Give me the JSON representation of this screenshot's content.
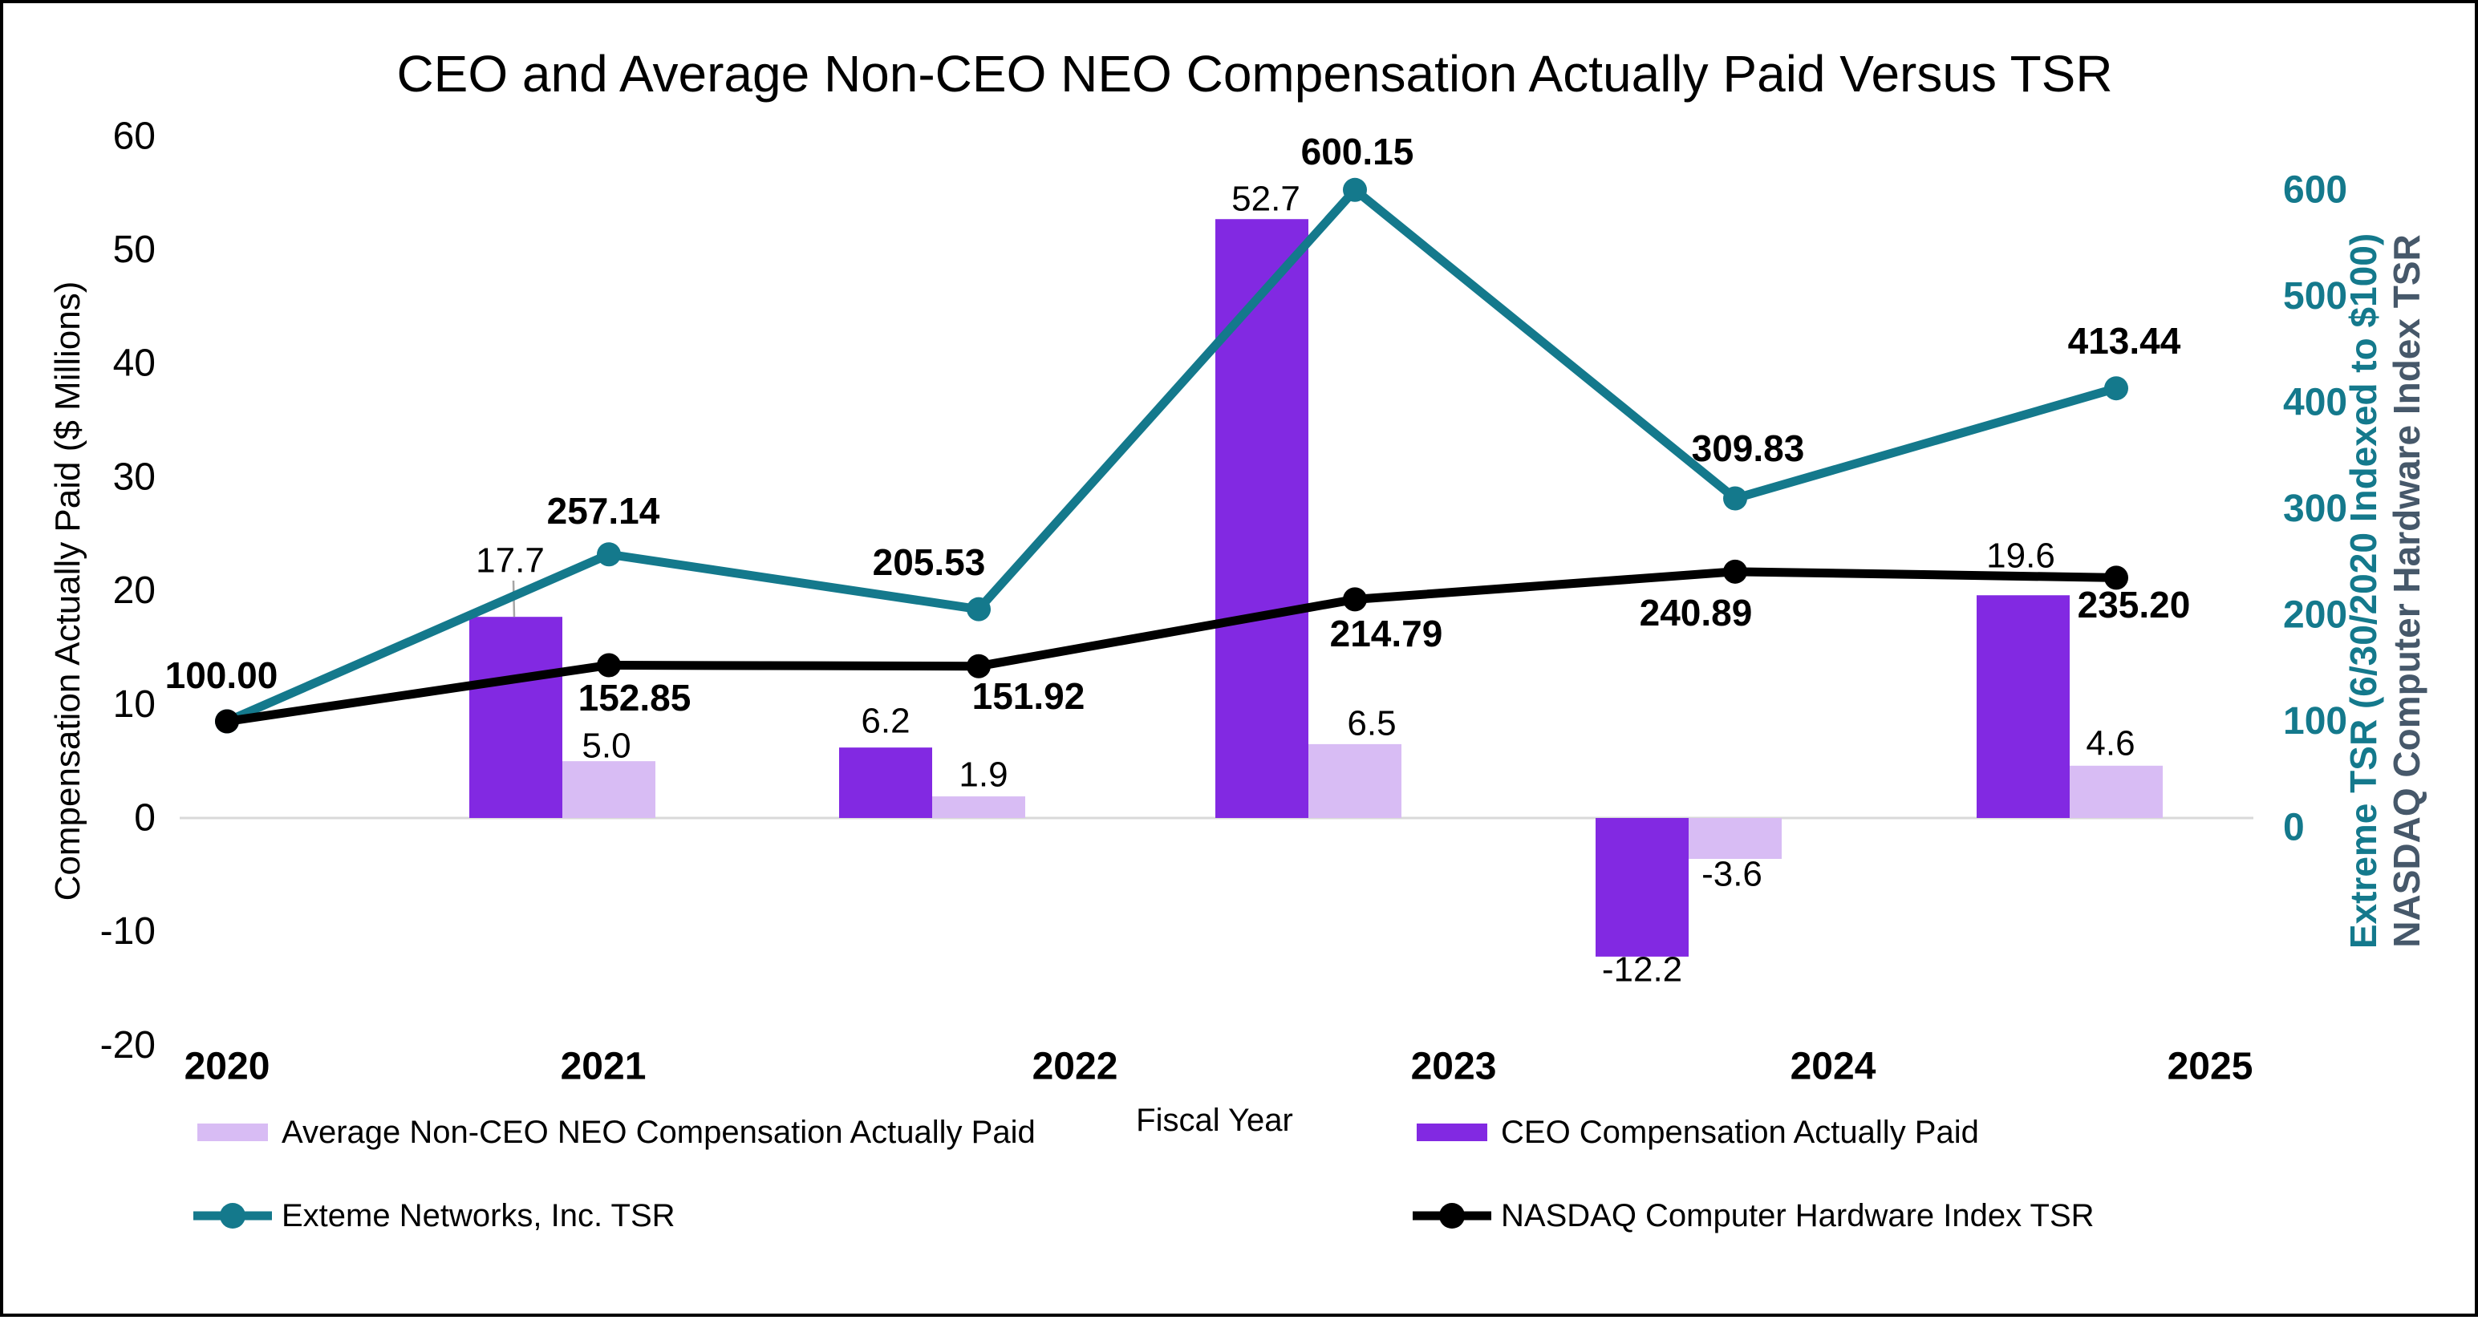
{
  "title": "CEO and Average Non-CEO NEO Compensation Actually Paid Versus TSR",
  "colors": {
    "ceo_bar": "#8229E2",
    "avg_bar": "#D8BCF4",
    "extreme_line": "#14798C",
    "nasdaq_line": "#000000",
    "right_axis_ticks": "#14798C",
    "right_axis_title1": "#14798C",
    "right_axis_title2": "#46586A",
    "zero_line": "#D9D9D9",
    "label_leader": "#A6A6A6"
  },
  "axes": {
    "left": {
      "title": "Compensation Actually Paid ($ Millions)",
      "ticks": [
        "60",
        "50",
        "40",
        "30",
        "20",
        "10",
        "0",
        "-10",
        "-20"
      ]
    },
    "right": {
      "title_line1": "Extreme TSR (6/30/2020 Indexed to $100)",
      "title_line2": "NASDAQ Computer Hardware Index TSR",
      "ticks": [
        "600",
        "500",
        "400",
        "300",
        "200",
        "100",
        "0"
      ]
    },
    "x": {
      "title": "Fiscal Year",
      "labels": [
        "2020",
        "2021",
        "2022",
        "2023",
        "2024",
        "2025"
      ]
    }
  },
  "legend": {
    "items": [
      {
        "label": "Average Non-CEO NEO Compensation Actually Paid",
        "marker": "bar",
        "color_key": "avg_bar"
      },
      {
        "label": "CEO Compensation Actually Paid",
        "marker": "bar",
        "color_key": "ceo_bar"
      },
      {
        "label": "Exteme Networks, Inc. TSR",
        "marker": "line",
        "color_key": "extreme_line"
      },
      {
        "label": "NASDAQ Computer Hardware Index TSR",
        "marker": "line",
        "color_key": "nasdaq_line"
      }
    ]
  },
  "chart_data": {
    "type": "combo",
    "categories": [
      "2020",
      "2021",
      "2022",
      "2023",
      "2024",
      "2025"
    ],
    "title": "CEO and Average Non-CEO NEO Compensation Actually Paid Versus TSR",
    "xlabel": "Fiscal Year",
    "left_axis": {
      "label": "Compensation Actually Paid ($ Millions)",
      "range": [
        -20,
        60
      ],
      "ticks": [
        60,
        50,
        40,
        30,
        20,
        10,
        0,
        -10,
        -20
      ]
    },
    "right_axis": {
      "label": "Extreme TSR (6/30/2020 Indexed to $100) NASDAQ Computer Hardware Index TSR",
      "ticks": [
        600,
        500,
        400,
        300,
        200,
        100,
        0
      ]
    },
    "grid": "zero-line-only",
    "legend_position": "bottom",
    "series": [
      {
        "name": "CEO Compensation Actually Paid",
        "type": "bar",
        "axis": "left",
        "values": [
          null,
          17.7,
          6.2,
          52.7,
          -12.2,
          19.6
        ],
        "labels": [
          null,
          "17.7",
          "6.2",
          "52.7",
          "-12.2",
          "19.6"
        ]
      },
      {
        "name": "Average Non-CEO NEO Compensation Actually Paid",
        "type": "bar",
        "axis": "left",
        "values": [
          null,
          5.0,
          1.9,
          6.5,
          -3.6,
          4.6
        ],
        "labels": [
          null,
          "5.0",
          "1.9",
          "6.5",
          "-3.6",
          "4.6"
        ]
      },
      {
        "name": "Exteme Networks, Inc. TSR",
        "type": "line",
        "axis": "right",
        "values": [
          100.0,
          257.14,
          205.53,
          600.15,
          309.83,
          413.44
        ],
        "labels": [
          "100.00",
          "257.14",
          "205.53",
          "600.15",
          "309.83",
          "413.44"
        ]
      },
      {
        "name": "NASDAQ Computer Hardware Index TSR",
        "type": "line",
        "axis": "right",
        "values": [
          100.0,
          152.85,
          151.92,
          214.79,
          240.89,
          235.2
        ],
        "labels": [
          null,
          "152.85",
          "151.92",
          "214.79",
          "240.89",
          "235.20"
        ]
      }
    ],
    "annotation": "100.00 label at 2020 is shared by both TSR lines (both indexed to $100)"
  }
}
